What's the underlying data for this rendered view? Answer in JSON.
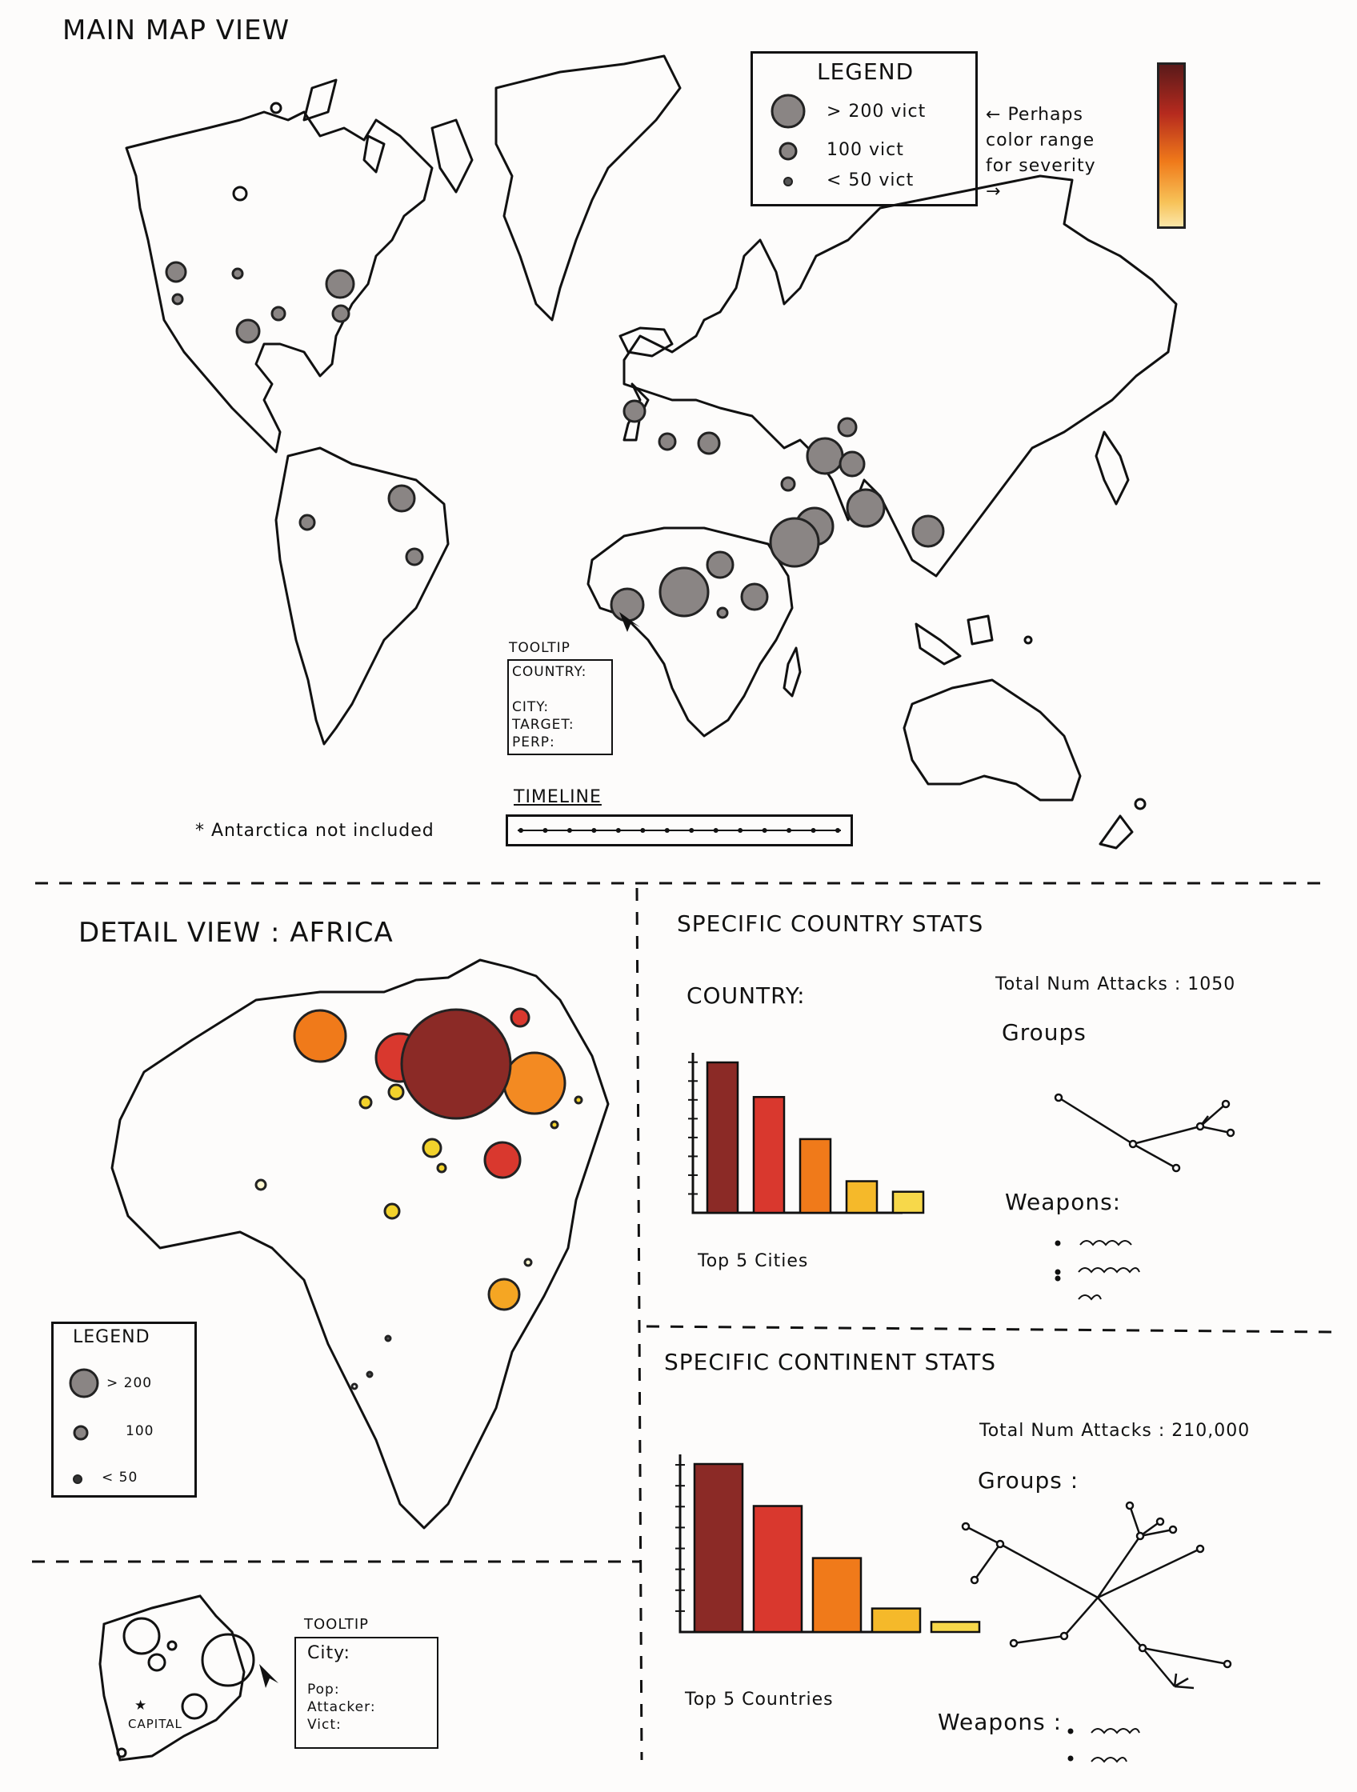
{
  "main": {
    "title": "MAIN MAP VIEW",
    "legend": {
      "title": "LEGEND",
      "items": [
        "> 200 vict",
        "100 vict",
        "< 50 vict"
      ]
    },
    "color_note": "Perhaps color range for severity",
    "tooltip": {
      "title": "TOOLTIP",
      "fields": [
        "COUNTRY:",
        "CITY:",
        "TARGET:",
        "PERP:"
      ]
    },
    "timeline": {
      "label": "TIMELINE",
      "tick_count": 14
    },
    "antarctica_note": "* Antarctica not included",
    "colors": {
      "outline": "#111111",
      "bubble": "#8a8584",
      "severity_high": "#5a1a1a",
      "severity_low": "#fbe6a8"
    }
  },
  "detail": {
    "title": "DETAIL VIEW : AFRICA",
    "legend": {
      "title": "LEGEND",
      "items": [
        "> 200",
        "100",
        "< 50"
      ]
    },
    "tooltip": {
      "title": "TOOLTIP",
      "fields": [
        "City:",
        "Pop:",
        "Attacker:",
        "Vict:"
      ]
    },
    "capital_label": "CAPITAL",
    "colors": {
      "dark": "#8b2a26",
      "red": "#d9382e",
      "orange": "#f07a1a",
      "yellow": "#f2d22c"
    }
  },
  "country_stats": {
    "title": "SPECIFIC COUNTRY STATS",
    "country_label": "COUNTRY:",
    "total_attacks": "Total Num Attacks : 1050",
    "groups_label": "Groups",
    "weapons_label": "Weapons:",
    "chart_caption": "Top 5 Cities"
  },
  "continent_stats": {
    "title": "SPECIFIC CONTINENT STATS",
    "total_attacks": "Total Num Attacks : 210,000",
    "groups_label": "Groups :",
    "weapons_label": "Weapons :",
    "chart_caption": "Top 5 Countries"
  },
  "chart_data": [
    {
      "type": "bar",
      "title": "",
      "caption": "Top 5 Cities",
      "values": [
        100,
        77,
        49,
        21,
        14
      ],
      "colors": [
        "#8b2a26",
        "#d9382e",
        "#f07a1a",
        "#f5b92a",
        "#f7d84a"
      ]
    },
    {
      "type": "bar",
      "title": "",
      "caption": "Top 5 Countries",
      "values": [
        100,
        75,
        44,
        14,
        6
      ],
      "colors": [
        "#8b2a26",
        "#d9382e",
        "#f07a1a",
        "#f5b92a",
        "#f7d84a"
      ]
    }
  ]
}
